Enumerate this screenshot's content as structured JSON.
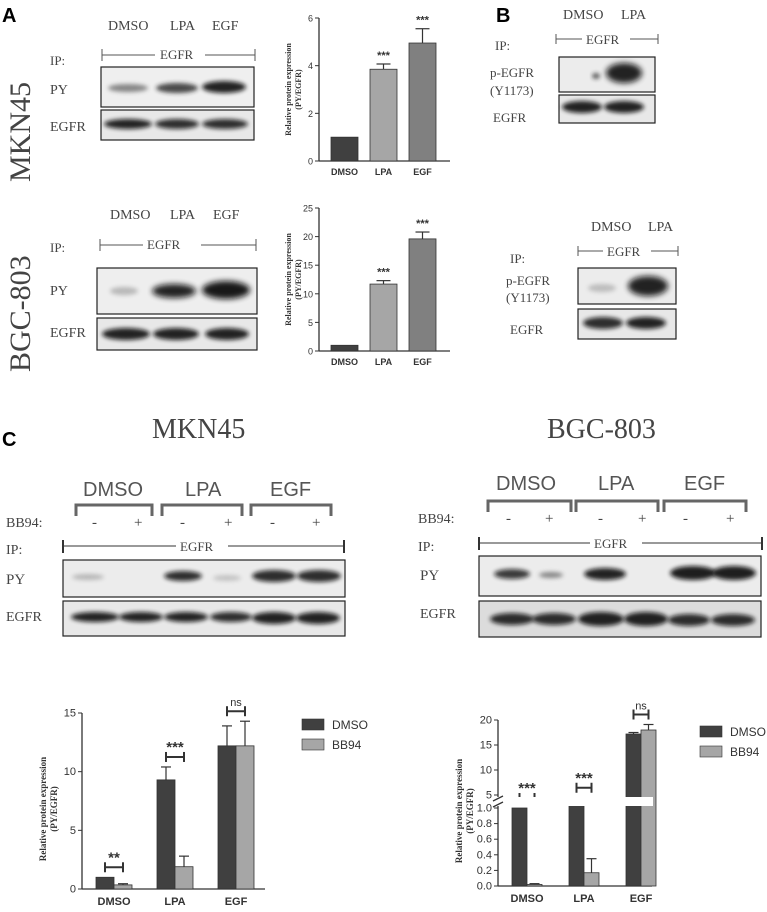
{
  "panel_labels": {
    "a": "A",
    "b": "B",
    "c": "C"
  },
  "panel_a": {
    "mkn45": {
      "cell_line": "MKN45",
      "lanes": [
        "DMSO",
        "LPA",
        "EGF"
      ],
      "ip_prefix": "IP:",
      "ip_target": "EGFR",
      "rows": [
        "PY",
        "EGFR"
      ]
    },
    "bgc": {
      "cell_line": "BGC-803",
      "lanes": [
        "DMSO",
        "LPA",
        "EGF"
      ],
      "ip_prefix": "IP:",
      "ip_target": "EGFR",
      "rows": [
        "PY",
        "EGFR"
      ]
    }
  },
  "panel_b": {
    "top": {
      "lanes": [
        "DMSO",
        "LPA"
      ],
      "ip_prefix": "IP:",
      "ip_target": "EGFR",
      "row1a": "p-EGFR",
      "row1b": "(Y1173)",
      "row2": "EGFR"
    },
    "bottom": {
      "lanes": [
        "DMSO",
        "LPA"
      ],
      "ip_prefix": "IP:",
      "ip_target": "EGFR",
      "row1a": "p-EGFR",
      "row1b": "(Y1173)",
      "row2": "EGFR"
    }
  },
  "panel_c": {
    "mkn45": {
      "title": "MKN45",
      "groups": [
        "DMSO",
        "LPA",
        "EGF"
      ],
      "treat_label": "BB94:",
      "signs": [
        "-",
        "+",
        "-",
        "+",
        "-",
        "+"
      ],
      "ip_prefix": "IP:",
      "ip_target": "EGFR",
      "rows": [
        "PY",
        "EGFR"
      ]
    },
    "bgc": {
      "title": "BGC-803",
      "groups": [
        "DMSO",
        "LPA",
        "EGF"
      ],
      "treat_label": "BB94:",
      "signs": [
        "-",
        "+",
        "-",
        "+",
        "-",
        "+"
      ],
      "ip_prefix": "IP:",
      "ip_target": "EGFR",
      "rows": [
        "PY",
        "EGFR"
      ]
    }
  },
  "colors": {
    "dark_bar": "#404040",
    "light_bar": "#a6a6a6",
    "axis": "#333333"
  },
  "chart_data": [
    {
      "type": "bar",
      "id": "a-mkn45",
      "categories": [
        "DMSO",
        "LPA",
        "EGF"
      ],
      "values": [
        1.0,
        3.85,
        4.95
      ],
      "errors": [
        0,
        0.22,
        0.6
      ],
      "significance": [
        "",
        "***",
        "***"
      ],
      "ylabel": "Relative protein expression (PY/EGFR)",
      "ylim": [
        0,
        6
      ],
      "yticks": [
        0,
        2,
        4,
        6
      ],
      "bar_colors": [
        "#404040",
        "#a6a6a6",
        "#808080"
      ]
    },
    {
      "type": "bar",
      "id": "a-bgc",
      "categories": [
        "DMSO",
        "LPA",
        "EGF"
      ],
      "values": [
        1.0,
        11.7,
        19.6
      ],
      "errors": [
        0,
        0.6,
        1.2
      ],
      "significance": [
        "",
        "***",
        "***"
      ],
      "ylabel": "Relative protein expression (PY/EGFR)",
      "ylim": [
        0,
        25
      ],
      "yticks": [
        0,
        5,
        10,
        15,
        20,
        25
      ],
      "bar_colors": [
        "#404040",
        "#a6a6a6",
        "#808080"
      ]
    },
    {
      "type": "bar",
      "id": "c-mkn45",
      "categories": [
        "DMSO",
        "LPA",
        "EGF"
      ],
      "series": [
        {
          "name": "DMSO",
          "values": [
            1.0,
            9.3,
            12.2
          ],
          "errors": [
            0,
            1.1,
            1.7
          ]
        },
        {
          "name": "BB94",
          "values": [
            0.35,
            1.9,
            12.2
          ],
          "errors": [
            0.1,
            0.9,
            2.1
          ]
        }
      ],
      "significance": [
        "**",
        "***",
        "ns"
      ],
      "ylabel": "Relative protein expression (PY/EGFR)",
      "ylim": [
        0,
        15
      ],
      "yticks": [
        0,
        5,
        10,
        15
      ],
      "legend": "right"
    },
    {
      "type": "bar",
      "id": "c-bgc",
      "categories": [
        "DMSO",
        "LPA",
        "EGF"
      ],
      "series": [
        {
          "name": "DMSO",
          "values": [
            1.0,
            4.2,
            17.2
          ],
          "errors": [
            0,
            0.25,
            0.3
          ]
        },
        {
          "name": "BB94",
          "values": [
            0.02,
            0.17,
            18.0
          ],
          "errors": [
            0.01,
            0.18,
            1.1
          ]
        }
      ],
      "significance": [
        "***",
        "***",
        "ns"
      ],
      "ylabel": "Relative protein expression (PY/EGFR)",
      "y_axis_break": true,
      "yticks": [
        0.0,
        0.2,
        0.4,
        0.6,
        0.8,
        1.0,
        5,
        10,
        15,
        20
      ],
      "legend": "right"
    }
  ]
}
